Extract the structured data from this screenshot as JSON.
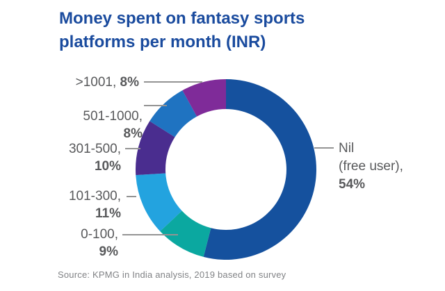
{
  "title_lines": [
    "Money spent on fantasy sports",
    "platforms per month (INR)"
  ],
  "source": "Source: KPMG in India analysis, 2019 based on survey",
  "chart_data": {
    "type": "pie",
    "subtype": "donut",
    "title": "Money spent on fantasy sports platforms per month (INR)",
    "categories": [
      "Nil (free user)",
      "0-100",
      "101-300",
      "301-500",
      "501-1000",
      ">1001"
    ],
    "values": [
      54,
      9,
      11,
      10,
      8,
      8
    ],
    "unit": "%",
    "colors": [
      "#15519E",
      "#0BA8A0",
      "#23A3DF",
      "#4A2D8F",
      "#1F73C1",
      "#7F2B99"
    ],
    "start_angle_deg": 0,
    "direction": "clockwise",
    "inner_radius_ratio": 0.67,
    "legend_position": "callout-labels",
    "grid": false
  },
  "callouts": {
    "gt1001": {
      "label": ">1001,",
      "pct": "8%"
    },
    "r501_1000": {
      "label": "501-1000,",
      "pct": "8%"
    },
    "r301_500": {
      "label": "301-500,",
      "pct": "10%"
    },
    "r101_300": {
      "label": "101-300,",
      "pct": "11%"
    },
    "r0_100": {
      "label": "0-100,",
      "pct": "9%"
    },
    "nil": {
      "label_line1": "Nil",
      "label_line2": "(free user),",
      "pct": "54%"
    }
  },
  "accent_colors": {
    "title_blue": "#1A4B9E",
    "label_gray": "#58595B",
    "leader_line_gray": "#939393",
    "source_gray": "#808285",
    "background": "#FFFFFF"
  }
}
